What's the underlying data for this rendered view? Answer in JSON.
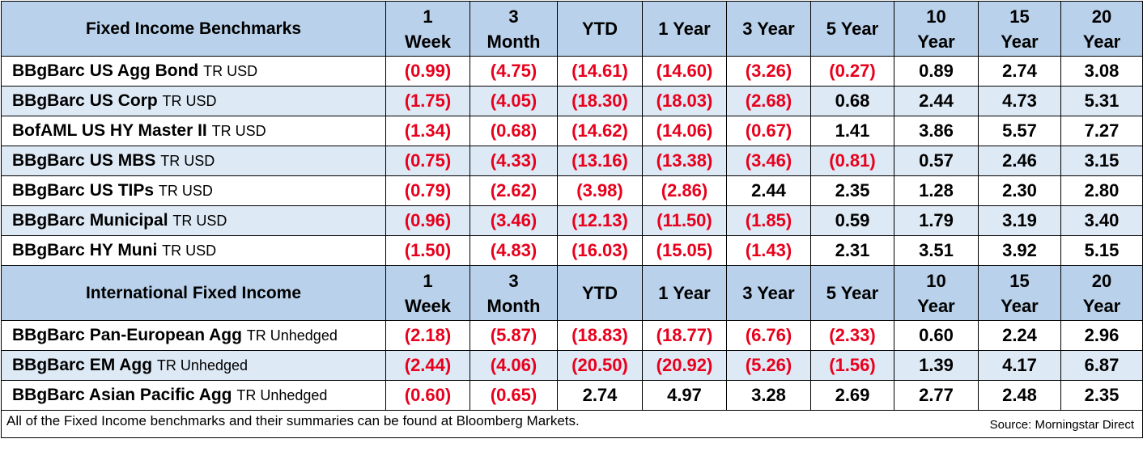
{
  "colors": {
    "header_bg": "#b9d1ea",
    "alt_row_bg": "#dde9f5",
    "negative_text": "#e8001c"
  },
  "section1": {
    "title": "Fixed Income Benchmarks",
    "columns": [
      [
        "1",
        "Week"
      ],
      [
        "3",
        "Month"
      ],
      [
        "YTD"
      ],
      [
        "1 Year"
      ],
      [
        "3 Year"
      ],
      [
        "5 Year"
      ],
      [
        "10",
        "Year"
      ],
      [
        "15",
        "Year"
      ],
      [
        "20",
        "Year"
      ]
    ],
    "rows": [
      {
        "name": "BBgBarc US Agg Bond",
        "suffix": "TR USD",
        "values": [
          "(0.99)",
          "(4.75)",
          "(14.61)",
          "(14.60)",
          "(3.26)",
          "(0.27)",
          "0.89",
          "2.74",
          "3.08"
        ]
      },
      {
        "name": "BBgBarc US Corp",
        "suffix": "TR USD",
        "values": [
          "(1.75)",
          "(4.05)",
          "(18.30)",
          "(18.03)",
          "(2.68)",
          "0.68",
          "2.44",
          "4.73",
          "5.31"
        ]
      },
      {
        "name": "BofAML US HY Master II",
        "suffix": "TR USD",
        "values": [
          "(1.34)",
          "(0.68)",
          "(14.62)",
          "(14.06)",
          "(0.67)",
          "1.41",
          "3.86",
          "5.57",
          "7.27"
        ]
      },
      {
        "name": "BBgBarc US MBS",
        "suffix": "TR USD",
        "values": [
          "(0.75)",
          "(4.33)",
          "(13.16)",
          "(13.38)",
          "(3.46)",
          "(0.81)",
          "0.57",
          "2.46",
          "3.15"
        ]
      },
      {
        "name": "BBgBarc US TIPs",
        "suffix": "TR USD",
        "values": [
          "(0.79)",
          "(2.62)",
          "(3.98)",
          "(2.86)",
          "2.44",
          "2.35",
          "1.28",
          "2.30",
          "2.80"
        ]
      },
      {
        "name": "BBgBarc Municipal",
        "suffix": "TR USD",
        "values": [
          "(0.96)",
          "(3.46)",
          "(12.13)",
          "(11.50)",
          "(1.85)",
          "0.59",
          "1.79",
          "3.19",
          "3.40"
        ]
      },
      {
        "name": "BBgBarc HY Muni",
        "suffix": "TR USD",
        "values": [
          "(1.50)",
          "(4.83)",
          "(16.03)",
          "(15.05)",
          "(1.43)",
          "2.31",
          "3.51",
          "3.92",
          "5.15"
        ]
      }
    ]
  },
  "section2": {
    "title": "International Fixed Income",
    "columns": [
      [
        "1",
        "Week"
      ],
      [
        "3",
        "Month"
      ],
      [
        "YTD"
      ],
      [
        "1 Year"
      ],
      [
        "3 Year"
      ],
      [
        "5 Year"
      ],
      [
        "10",
        "Year"
      ],
      [
        "15",
        "Year"
      ],
      [
        "20",
        "Year"
      ]
    ],
    "rows": [
      {
        "name": "BBgBarc Pan-European Agg",
        "suffix": "TR Unhedged",
        "values": [
          "(2.18)",
          "(5.87)",
          "(18.83)",
          "(18.77)",
          "(6.76)",
          "(2.33)",
          "0.60",
          "2.24",
          "2.96"
        ]
      },
      {
        "name": "BBgBarc EM Agg",
        "suffix": "TR Unhedged",
        "values": [
          "(2.44)",
          "(4.06)",
          "(20.50)",
          "(20.92)",
          "(5.26)",
          "(1.56)",
          "1.39",
          "4.17",
          "6.87"
        ]
      },
      {
        "name": "BBgBarc Asian Pacific Agg",
        "suffix": "TR Unhedged",
        "values": [
          "(0.60)",
          "(0.65)",
          "2.74",
          "4.97",
          "3.28",
          "2.69",
          "2.77",
          "2.48",
          "2.35"
        ]
      }
    ]
  },
  "footer": {
    "note": "All of the Fixed Income benchmarks and their summaries can be found at Bloomberg Markets.",
    "source": "Source: Morningstar Direct"
  }
}
